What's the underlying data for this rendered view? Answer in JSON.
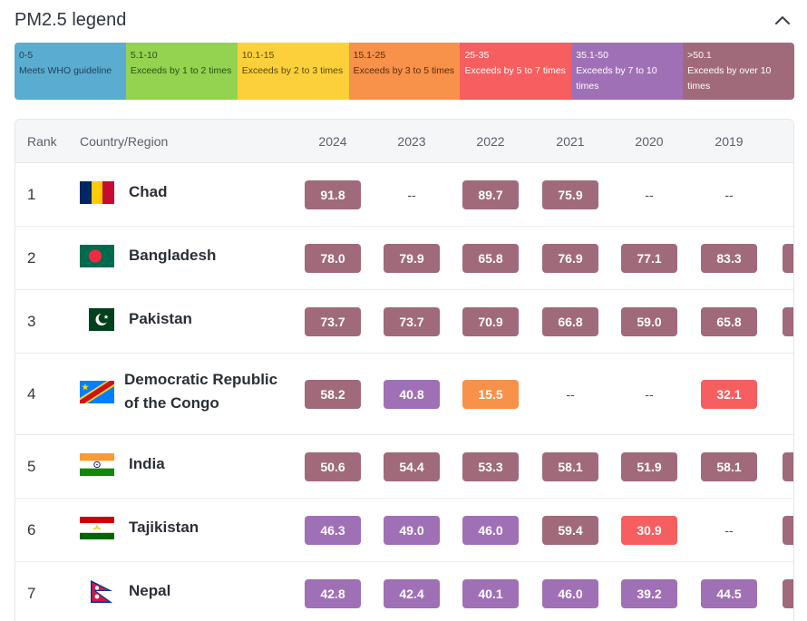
{
  "legend": {
    "title": "PM2.5 legend",
    "segments": [
      {
        "range": "0-5",
        "desc": "Meets WHO guideline",
        "color": "#5aadd0",
        "text_color": "#1f3f55"
      },
      {
        "range": "5.1-10",
        "desc": "Exceeds by 1 to 2 times",
        "color": "#93d350",
        "text_color": "#2f4d14"
      },
      {
        "range": "10.1-15",
        "desc": "Exceeds by 2 to 3 times",
        "color": "#fcd03a",
        "text_color": "#5a4a0a"
      },
      {
        "range": "15.1-25",
        "desc": "Exceeds by 3 to 5 times",
        "color": "#f89149",
        "text_color": "#5a2c0c"
      },
      {
        "range": "25-35",
        "desc": "Exceeds by 5 to 7 times",
        "color": "#f65e5f",
        "text_color": "#ffffff"
      },
      {
        "range": "35.1-50",
        "desc": "Exceeds by 7 to 10 times",
        "color": "#a070b6",
        "text_color": "#ffffff"
      },
      {
        "range": ">50.1",
        "desc": "Exceeds by over 10 times",
        "color": "#a06a7b",
        "text_color": "#ffffff"
      }
    ]
  },
  "table": {
    "headers": {
      "rank": "Rank",
      "country": "Country/Region"
    },
    "years": [
      "2024",
      "2023",
      "2022",
      "2021",
      "2020",
      "2019"
    ],
    "rows": [
      {
        "rank": "1",
        "country": [
          "Chad"
        ],
        "flag": "chad-flag",
        "values": [
          "91.8",
          "--",
          "89.7",
          "75.9",
          "--",
          "--"
        ],
        "extra": false
      },
      {
        "rank": "2",
        "country": [
          "Bangladesh"
        ],
        "flag": "bangladesh-flag",
        "values": [
          "78.0",
          "79.9",
          "65.8",
          "76.9",
          "77.1",
          "83.3"
        ],
        "extra": true
      },
      {
        "rank": "3",
        "country": [
          "Pakistan"
        ],
        "flag": "pakistan-flag",
        "values": [
          "73.7",
          "73.7",
          "70.9",
          "66.8",
          "59.0",
          "65.8"
        ],
        "extra": true
      },
      {
        "rank": "4",
        "country": [
          "Democratic Republic",
          "of the Congo"
        ],
        "flag": "drc-flag",
        "values": [
          "58.2",
          "40.8",
          "15.5",
          "--",
          "--",
          "32.1"
        ],
        "extra": false
      },
      {
        "rank": "5",
        "country": [
          "India"
        ],
        "flag": "india-flag",
        "values": [
          "50.6",
          "54.4",
          "53.3",
          "58.1",
          "51.9",
          "58.1"
        ],
        "extra": true
      },
      {
        "rank": "6",
        "country": [
          "Tajikistan"
        ],
        "flag": "tajikistan-flag",
        "values": [
          "46.3",
          "49.0",
          "46.0",
          "59.4",
          "30.9",
          "--"
        ],
        "extra": true
      },
      {
        "rank": "7",
        "country": [
          "Nepal"
        ],
        "flag": "nepal-flag",
        "values": [
          "42.8",
          "42.4",
          "40.1",
          "46.0",
          "39.2",
          "44.5"
        ],
        "extra": true
      }
    ]
  },
  "scale_colors": {
    "gt50": "#a06a7b",
    "35to50": "#a070b6",
    "25to35": "#f65e5f",
    "15to25": "#f89149",
    "10to15": "#fcd03a",
    "5to10": "#93d350",
    "0to5": "#5aadd0"
  }
}
